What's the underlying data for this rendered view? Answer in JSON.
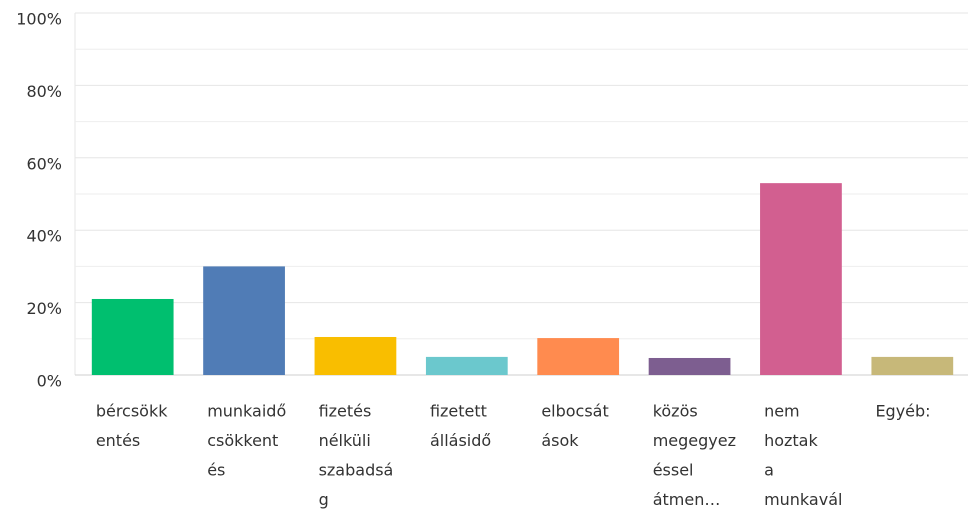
{
  "chart_data": {
    "type": "bar",
    "categories": [
      [
        "bércsökk",
        "entés"
      ],
      [
        "munkaidő",
        "csökkent",
        "és"
      ],
      [
        "fizetés",
        "nélküli",
        "szabadsá",
        "g"
      ],
      [
        "fizetett",
        "állásidő"
      ],
      [
        "elbocsát",
        "ások"
      ],
      [
        "közös",
        "megegyez",
        "éssel",
        "átmen…"
      ],
      [
        "nem",
        "hoztak",
        "a",
        "munkavál"
      ],
      [
        "Egyéb:"
      ]
    ],
    "values": [
      21,
      30,
      10.5,
      5,
      10.2,
      4.7,
      53,
      5
    ],
    "colors": [
      "#00bf6f",
      "#507cb6",
      "#f9be00",
      "#6bc8cd",
      "#ff8b4f",
      "#7d5e90",
      "#d25f90",
      "#c7b879"
    ],
    "ylim": [
      0,
      100
    ],
    "yticks": [
      {
        "value": 0,
        "label": "0%"
      },
      {
        "value": 20,
        "label": "20%"
      },
      {
        "value": 40,
        "label": "40%"
      },
      {
        "value": 60,
        "label": "60%"
      },
      {
        "value": 80,
        "label": "80%"
      },
      {
        "value": 100,
        "label": "100%"
      }
    ],
    "minor_yticks": [
      10,
      30,
      50,
      70,
      90
    ],
    "grid": true
  }
}
